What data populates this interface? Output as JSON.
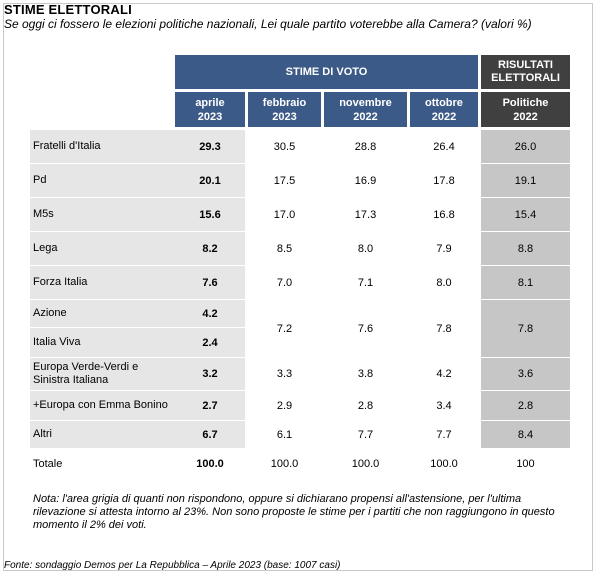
{
  "title": "STIME ELETTORALI",
  "subtitle": "Se oggi ci fossero le elezioni politiche nazionali, Lei quale partito voterebbe alla Camera? (valori %)",
  "colors": {
    "header_blue": "#3c5a87",
    "header_dark": "#404040",
    "first_col_bg": "#e6e6e6",
    "results_bg": "#c6c6c6"
  },
  "chart_data": {
    "type": "table",
    "group_headers": [
      "STIME DI VOTO",
      "RISULTATI ELETTORALI"
    ],
    "columns": [
      [
        "aprile",
        "2023"
      ],
      [
        "febbraio",
        "2023"
      ],
      [
        "novembre",
        "2022"
      ],
      [
        "ottobre",
        "2022"
      ],
      [
        "Politiche",
        "2022"
      ]
    ],
    "rows": [
      {
        "party": "Fratelli d'Italia",
        "values": [
          "29.3",
          "30.5",
          "28.8",
          "26.4",
          "26.0"
        ]
      },
      {
        "party": "Pd",
        "values": [
          "20.1",
          "17.5",
          "16.9",
          "17.8",
          "19.1"
        ]
      },
      {
        "party": "M5s",
        "values": [
          "15.6",
          "17.0",
          "17.3",
          "16.8",
          "15.4"
        ]
      },
      {
        "party": "Lega",
        "values": [
          "8.2",
          "8.5",
          "8.0",
          "7.9",
          "8.8"
        ]
      },
      {
        "party": "Forza Italia",
        "values": [
          "7.6",
          "7.0",
          "7.1",
          "8.0",
          "8.1"
        ]
      },
      {
        "party": "Azione",
        "values": [
          "4.2"
        ]
      },
      {
        "party": "Italia Viva",
        "values": [
          "2.4"
        ]
      },
      {
        "party": "Azione + Italia Viva (combined)",
        "values": [
          "7.2",
          "7.6",
          "7.8",
          "7.8"
        ]
      },
      {
        "party": "Europa Verde-Verdi e Sinistra Italiana",
        "values": [
          "3.2",
          "3.3",
          "3.8",
          "4.2",
          "3.6"
        ]
      },
      {
        "party": "+Europa con Emma Bonino",
        "values": [
          "2.7",
          "2.9",
          "2.8",
          "3.4",
          "2.8"
        ]
      },
      {
        "party": "Altri",
        "values": [
          "6.7",
          "6.1",
          "7.7",
          "7.7",
          "8.4"
        ]
      }
    ],
    "total": {
      "label": "Totale",
      "values": [
        "100.0",
        "100.0",
        "100.0",
        "100.0",
        "100"
      ]
    }
  },
  "note": "Nota: l'area grigia di quanti non rispondono, oppure si dichiarano propensi all'astensione, per l'ultima rilevazione si attesta intorno al 23%. Non sono proposte le stime per i partiti che non raggiungono in questo momento il 2% dei voti.",
  "source": "Fonte: sondaggio Demos per La Repubblica – Aprile 2023 (base: 1007 casi)"
}
